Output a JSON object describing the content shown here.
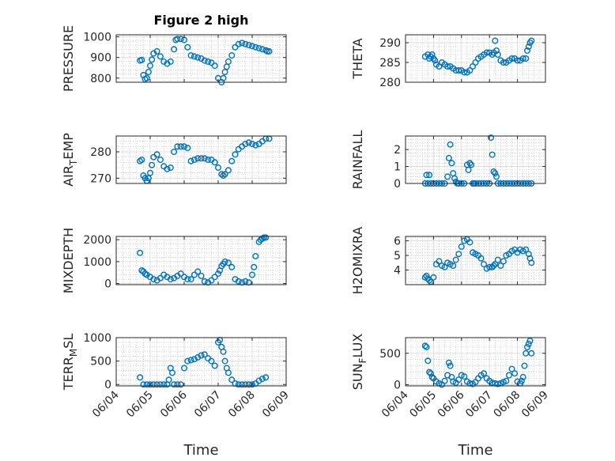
{
  "colors": {
    "marker": "#0072BD",
    "axis": "#262626",
    "grid": "#b8b8b8",
    "background": "#ffffff"
  },
  "chart_data": [
    {
      "type": "scatter",
      "title": "Figure 2 high",
      "ylabel": "PRESSURE",
      "xlabel": "",
      "ylim": [
        780,
        1010
      ],
      "yticks": [
        800,
        900,
        1000
      ],
      "xlim": [
        4.0,
        9.0
      ],
      "xticks": [
        "06/04",
        "06/05",
        "06/06",
        "06/07",
        "06/08",
        "06/09"
      ],
      "show_xticks": false,
      "grid": true,
      "series": [
        {
          "x": [
            4.7,
            4.75,
            4.8,
            4.85,
            4.9,
            4.95,
            5.0,
            5.05,
            5.1,
            5.2,
            5.3,
            5.4,
            5.5,
            5.6,
            5.7,
            5.75,
            5.8,
            5.9,
            6.0,
            6.1,
            6.2,
            6.3,
            6.4,
            6.5,
            6.6,
            6.7,
            6.8,
            6.9,
            7.0,
            7.1,
            7.15,
            7.2,
            7.25,
            7.3,
            7.4,
            7.5,
            7.6,
            7.7,
            7.8,
            7.9,
            8.0,
            8.1,
            8.2,
            8.3,
            8.4,
            8.45,
            8.5
          ],
          "y": [
            885,
            888,
            815,
            795,
            800,
            830,
            860,
            890,
            920,
            930,
            905,
            880,
            870,
            880,
            940,
            985,
            990,
            990,
            985,
            950,
            910,
            905,
            900,
            895,
            885,
            880,
            875,
            860,
            800,
            780,
            800,
            830,
            855,
            880,
            910,
            950,
            965,
            970,
            965,
            960,
            955,
            950,
            945,
            940,
            935,
            930,
            930
          ]
        }
      ]
    },
    {
      "type": "scatter",
      "title": "",
      "ylabel": "THETA",
      "xlabel": "",
      "ylim": [
        280,
        292
      ],
      "yticks": [
        280,
        285,
        290
      ],
      "xlim": [
        4.0,
        9.0
      ],
      "xticks": [
        "06/04",
        "06/05",
        "06/06",
        "06/07",
        "06/08",
        "06/09"
      ],
      "show_xticks": false,
      "grid": true,
      "series": [
        {
          "x": [
            4.7,
            4.8,
            4.85,
            4.9,
            4.95,
            5.0,
            5.05,
            5.1,
            5.2,
            5.3,
            5.4,
            5.5,
            5.6,
            5.7,
            5.8,
            5.9,
            6.0,
            6.1,
            6.2,
            6.3,
            6.4,
            6.5,
            6.6,
            6.7,
            6.8,
            6.9,
            7.0,
            7.1,
            7.15,
            7.2,
            7.25,
            7.3,
            7.4,
            7.5,
            7.6,
            7.7,
            7.8,
            7.9,
            8.0,
            8.1,
            8.2,
            8.3,
            8.35,
            8.4,
            8.45,
            8.5
          ],
          "y": [
            286.5,
            287,
            286,
            286.5,
            287,
            286,
            285.5,
            284.5,
            284,
            285,
            284.5,
            284,
            284,
            283.5,
            283,
            283,
            283,
            282.5,
            282.5,
            283,
            284,
            285,
            286,
            286.5,
            287,
            287.5,
            287.5,
            287,
            287.5,
            290.5,
            288,
            287,
            285.5,
            285,
            285,
            285.5,
            286,
            286,
            285.5,
            285.5,
            286,
            286,
            288,
            289,
            290,
            290.5
          ]
        }
      ]
    },
    {
      "type": "scatter",
      "title": "",
      "ylabel": "AIR_TEMP",
      "xlabel": "",
      "ylim": [
        268,
        286
      ],
      "yticks": [
        270,
        280
      ],
      "xlim": [
        4.0,
        9.0
      ],
      "xticks": [
        "06/04",
        "06/05",
        "06/06",
        "06/07",
        "06/08",
        "06/09"
      ],
      "show_xticks": false,
      "grid": true,
      "series": [
        {
          "x": [
            4.7,
            4.75,
            4.8,
            4.85,
            4.9,
            4.95,
            5.0,
            5.05,
            5.1,
            5.2,
            5.3,
            5.4,
            5.5,
            5.6,
            5.7,
            5.8,
            5.9,
            6.0,
            6.1,
            6.2,
            6.3,
            6.4,
            6.5,
            6.6,
            6.7,
            6.8,
            6.9,
            7.0,
            7.1,
            7.15,
            7.2,
            7.3,
            7.4,
            7.5,
            7.6,
            7.7,
            7.8,
            7.9,
            8.0,
            8.1,
            8.2,
            8.3,
            8.4,
            8.5
          ],
          "y": [
            276.5,
            277,
            271,
            270,
            269,
            270,
            272,
            275,
            278,
            279,
            277,
            274.5,
            273.5,
            274,
            280,
            282,
            282,
            282,
            281.5,
            276.5,
            277,
            277.5,
            277.5,
            277.5,
            277,
            277,
            276,
            274,
            271.5,
            271,
            271.5,
            273,
            276.5,
            279,
            281,
            282,
            283,
            283.5,
            283,
            282.5,
            283,
            284,
            285,
            285
          ]
        }
      ]
    },
    {
      "type": "scatter",
      "title": "",
      "ylabel": "RAINFALL",
      "xlabel": "",
      "ylim": [
        0,
        2.8
      ],
      "yticks": [
        0,
        1,
        2
      ],
      "xlim": [
        4.0,
        9.0
      ],
      "xticks": [
        "06/04",
        "06/05",
        "06/06",
        "06/07",
        "06/08",
        "06/09"
      ],
      "show_xticks": false,
      "grid": true,
      "series": [
        {
          "x": [
            4.7,
            4.75,
            4.8,
            4.85,
            4.9,
            5.0,
            5.1,
            5.2,
            5.3,
            5.4,
            5.5,
            5.55,
            5.6,
            5.65,
            5.7,
            5.75,
            5.8,
            5.85,
            5.9,
            6.0,
            6.1,
            6.2,
            6.25,
            6.3,
            6.35,
            6.4,
            6.45,
            6.5,
            6.6,
            6.7,
            6.8,
            6.9,
            7.0,
            7.05,
            7.1,
            7.15,
            7.2,
            7.25,
            7.3,
            7.4,
            7.5,
            7.6,
            7.7,
            7.8,
            7.9,
            8.0,
            8.1,
            8.2,
            8.3,
            8.4,
            8.5
          ],
          "y": [
            0,
            0.5,
            0,
            0.5,
            0,
            0,
            0,
            0,
            0,
            0,
            0.4,
            1.5,
            2.3,
            1.2,
            0.6,
            0.3,
            0.1,
            0,
            0,
            0,
            0,
            1.1,
            0.8,
            1.2,
            1.1,
            0,
            0,
            0,
            0,
            0,
            0,
            0,
            0,
            2.7,
            1.7,
            0.7,
            0.6,
            0.4,
            0,
            0,
            0,
            0,
            0,
            0,
            0,
            0,
            0,
            0,
            0,
            0,
            0
          ]
        }
      ]
    },
    {
      "type": "scatter",
      "title": "",
      "ylabel": "MIXDEPTH",
      "xlabel": "",
      "ylim": [
        -50,
        2150
      ],
      "yticks": [
        0,
        1000,
        2000
      ],
      "xlim": [
        4.0,
        9.0
      ],
      "xticks": [
        "06/04",
        "06/05",
        "06/06",
        "06/07",
        "06/08",
        "06/09"
      ],
      "show_xticks": false,
      "grid": true,
      "series": [
        {
          "x": [
            4.7,
            4.75,
            4.8,
            4.85,
            4.9,
            5.0,
            5.1,
            5.2,
            5.3,
            5.4,
            5.5,
            5.6,
            5.7,
            5.8,
            5.9,
            6.0,
            6.1,
            6.2,
            6.3,
            6.4,
            6.5,
            6.6,
            6.7,
            6.8,
            6.9,
            7.0,
            7.05,
            7.1,
            7.15,
            7.2,
            7.3,
            7.4,
            7.5,
            7.6,
            7.7,
            7.8,
            7.9,
            8.0,
            8.05,
            8.1,
            8.2,
            8.25,
            8.3,
            8.35,
            8.4
          ],
          "y": [
            1400,
            600,
            550,
            450,
            400,
            300,
            200,
            150,
            250,
            400,
            300,
            200,
            250,
            350,
            450,
            300,
            200,
            200,
            400,
            550,
            350,
            100,
            50,
            150,
            300,
            450,
            600,
            800,
            900,
            1000,
            950,
            750,
            200,
            100,
            50,
            100,
            50,
            400,
            750,
            1250,
            1900,
            2000,
            2050,
            2100,
            2100
          ]
        }
      ]
    },
    {
      "type": "scatter",
      "title": "",
      "ylabel": "H2OMIXRA",
      "xlabel": "",
      "ylim": [
        3.0,
        6.3
      ],
      "yticks": [
        4,
        5,
        6
      ],
      "xlim": [
        4.0,
        9.0
      ],
      "xticks": [
        "06/04",
        "06/05",
        "06/06",
        "06/07",
        "06/08",
        "06/09"
      ],
      "show_xticks": false,
      "grid": true,
      "series": [
        {
          "x": [
            4.7,
            4.75,
            4.8,
            4.85,
            4.9,
            5.0,
            5.1,
            5.2,
            5.3,
            5.4,
            5.5,
            5.6,
            5.7,
            5.8,
            5.9,
            6.0,
            6.1,
            6.2,
            6.3,
            6.4,
            6.5,
            6.6,
            6.7,
            6.8,
            6.9,
            7.0,
            7.1,
            7.15,
            7.2,
            7.3,
            7.4,
            7.5,
            7.6,
            7.7,
            7.8,
            7.9,
            8.0,
            8.1,
            8.2,
            8.3,
            8.4,
            8.45,
            8.5
          ],
          "y": [
            3.5,
            3.6,
            3.4,
            3.3,
            3.2,
            3.5,
            4.4,
            4.6,
            4.3,
            4.2,
            4.5,
            4.4,
            4.3,
            4.7,
            5.1,
            5.6,
            6.0,
            6.1,
            5.9,
            5.2,
            5.1,
            5.0,
            4.8,
            4.4,
            4.1,
            4.2,
            4.2,
            4.3,
            4.4,
            4.7,
            4.3,
            4.6,
            5.0,
            5.1,
            5.3,
            5.4,
            5.2,
            5.4,
            5.3,
            5.4,
            5.1,
            4.8,
            4.5
          ]
        }
      ]
    },
    {
      "type": "scatter",
      "title": "",
      "ylabel": "TERR_MSL",
      "xlabel": "Time",
      "ylim": [
        -30,
        1000
      ],
      "yticks": [
        0,
        500,
        1000
      ],
      "xlim": [
        4.0,
        9.0
      ],
      "xticks": [
        "06/04",
        "06/05",
        "06/06",
        "06/07",
        "06/08",
        "06/09"
      ],
      "show_xticks": true,
      "grid": true,
      "series": [
        {
          "x": [
            4.7,
            4.8,
            4.9,
            5.0,
            5.1,
            5.2,
            5.3,
            5.4,
            5.5,
            5.55,
            5.6,
            5.65,
            5.7,
            5.8,
            5.9,
            6.0,
            6.1,
            6.2,
            6.3,
            6.4,
            6.5,
            6.6,
            6.7,
            6.8,
            6.9,
            7.0,
            7.05,
            7.1,
            7.15,
            7.2,
            7.25,
            7.3,
            7.4,
            7.5,
            7.6,
            7.7,
            7.8,
            7.9,
            8.0,
            8.1,
            8.2,
            8.3,
            8.4
          ],
          "y": [
            150,
            0,
            0,
            0,
            0,
            0,
            0,
            0,
            0,
            100,
            350,
            250,
            0,
            0,
            0,
            350,
            500,
            520,
            540,
            580,
            620,
            640,
            560,
            500,
            400,
            900,
            950,
            800,
            700,
            500,
            350,
            250,
            100,
            20,
            0,
            0,
            0,
            0,
            0,
            20,
            80,
            120,
            150
          ]
        }
      ]
    },
    {
      "type": "scatter",
      "title": "",
      "ylabel": "SUN_FLUX",
      "xlabel": "Time",
      "ylim": [
        -20,
        750
      ],
      "yticks": [
        0,
        500
      ],
      "xlim": [
        4.0,
        9.0
      ],
      "xticks": [
        "06/04",
        "06/05",
        "06/06",
        "06/07",
        "06/08",
        "06/09"
      ],
      "show_xticks": true,
      "grid": true,
      "series": [
        {
          "x": [
            4.7,
            4.75,
            4.8,
            4.85,
            4.9,
            4.95,
            5.0,
            5.1,
            5.2,
            5.3,
            5.4,
            5.5,
            5.55,
            5.6,
            5.65,
            5.7,
            5.8,
            5.9,
            6.0,
            6.1,
            6.2,
            6.3,
            6.4,
            6.5,
            6.6,
            6.7,
            6.8,
            6.9,
            7.0,
            7.1,
            7.2,
            7.3,
            7.4,
            7.5,
            7.6,
            7.7,
            7.8,
            7.9,
            8.0,
            8.1,
            8.15,
            8.2,
            8.25,
            8.3,
            8.35,
            8.4,
            8.45,
            8.5
          ],
          "y": [
            620,
            600,
            380,
            200,
            180,
            120,
            100,
            50,
            20,
            0,
            60,
            150,
            350,
            300,
            120,
            50,
            30,
            80,
            150,
            130,
            50,
            20,
            10,
            40,
            100,
            150,
            180,
            100,
            60,
            30,
            20,
            10,
            20,
            40,
            60,
            150,
            250,
            180,
            50,
            20,
            60,
            120,
            300,
            500,
            600,
            650,
            700,
            500
          ]
        }
      ]
    }
  ],
  "ylabel_parts": [
    {
      "main": "PRESSURE"
    },
    {
      "main": "THETA"
    },
    {
      "main": "AIR",
      "sub": "T",
      "rest": "EMP"
    },
    {
      "main": "RAINFALL"
    },
    {
      "main": "MIXDEPTH"
    },
    {
      "main": "H2OMIXRA"
    },
    {
      "main": "TERR",
      "sub": "M",
      "rest": "SL"
    },
    {
      "main": "SUN",
      "sub": "F",
      "rest": "LUX"
    }
  ]
}
